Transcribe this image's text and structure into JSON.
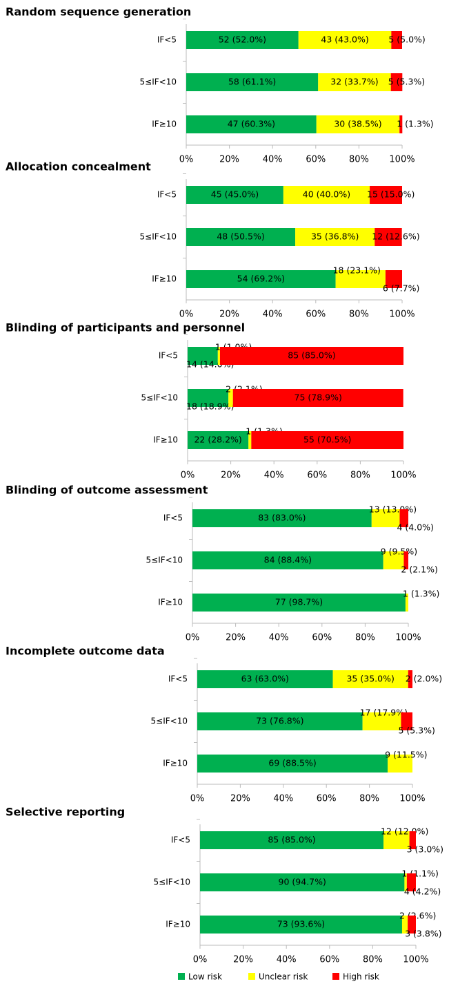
{
  "chart_data": [
    {
      "type": "stacked-bar",
      "title": "Random sequence generation",
      "categories": [
        "IF<5",
        "5≤IF<10",
        "IF≥10"
      ],
      "series": [
        {
          "color": "#00b050",
          "values": [
            52.0,
            61.1,
            60.3
          ],
          "value_labels": [
            "52 (52.0%)",
            "58 (61.1%)",
            "47 (60.3%)"
          ]
        },
        {
          "color": "#ffff00",
          "values": [
            43.0,
            33.7,
            38.5
          ],
          "value_labels": [
            "43 (43.0%)",
            "32 (33.7%)",
            "30 (38.5%)"
          ]
        },
        {
          "color": "#ff0000",
          "values": [
            5.0,
            5.3,
            1.3
          ],
          "value_labels": [
            "5 (5.0%)",
            "5 (5.3%)",
            "1 (1.3%)"
          ]
        }
      ],
      "xlim": [
        0,
        100
      ],
      "xticks": [
        {
          "value": 0,
          "label": "0%"
        },
        {
          "value": 20,
          "label": "20%"
        },
        {
          "value": 40,
          "label": "40%"
        },
        {
          "value": 60,
          "label": "60%"
        },
        {
          "value": 80,
          "label": "80%"
        },
        {
          "value": 100,
          "label": "100%"
        }
      ]
    },
    {
      "type": "stacked-bar",
      "title": "Allocation concealment",
      "categories": [
        "IF<5",
        "5≤IF<10",
        "IF≥10"
      ],
      "series": [
        {
          "color": "#00b050",
          "values": [
            45.0,
            50.5,
            69.2
          ],
          "value_labels": [
            "45 (45.0%)",
            "48 (50.5%)",
            "54 (69.2%)"
          ]
        },
        {
          "color": "#ffff00",
          "values": [
            40.0,
            36.8,
            23.1
          ],
          "value_labels": [
            "40 (40.0%)",
            "35 (36.8%)",
            "18 (23.1%)"
          ]
        },
        {
          "color": "#ff0000",
          "values": [
            15.0,
            12.6,
            7.7
          ],
          "value_labels": [
            "15 (15.0%)",
            "12 (12.6%)",
            "6 (7.7%)"
          ]
        }
      ],
      "xlim": [
        0,
        100
      ],
      "xticks": [
        {
          "value": 0,
          "label": "0%"
        },
        {
          "value": 20,
          "label": "20%"
        },
        {
          "value": 40,
          "label": "40%"
        },
        {
          "value": 60,
          "label": "60%"
        },
        {
          "value": 80,
          "label": "80%"
        },
        {
          "value": 100,
          "label": "100%"
        }
      ]
    },
    {
      "type": "stacked-bar",
      "title": "Blinding of participants and personnel",
      "categories": [
        "IF<5",
        "5≤IF<10",
        "IF≥10"
      ],
      "series": [
        {
          "color": "#00b050",
          "values": [
            14.0,
            18.9,
            28.2
          ],
          "value_labels": [
            "14 (14.0%)",
            "18 (18.9%)",
            "22 (28.2%)"
          ]
        },
        {
          "color": "#ffff00",
          "values": [
            1.0,
            2.1,
            1.3
          ],
          "value_labels": [
            "1 (1.0%)",
            "2 (2.1%)",
            "1 (1.3%)"
          ]
        },
        {
          "color": "#ff0000",
          "values": [
            85.0,
            78.9,
            70.5
          ],
          "value_labels": [
            "85 (85.0%)",
            "75 (78.9%)",
            "55 (70.5%)"
          ]
        }
      ],
      "xlim": [
        0,
        100
      ],
      "xticks": [
        {
          "value": 0,
          "label": "0%"
        },
        {
          "value": 20,
          "label": "20%"
        },
        {
          "value": 40,
          "label": "40%"
        },
        {
          "value": 60,
          "label": "60%"
        },
        {
          "value": 80,
          "label": "80%"
        },
        {
          "value": 100,
          "label": "100%"
        }
      ]
    },
    {
      "type": "stacked-bar",
      "title": "Blinding of outcome assessment",
      "categories": [
        "IF<5",
        "5≤IF<10",
        "IF≥10"
      ],
      "series": [
        {
          "color": "#00b050",
          "values": [
            83.0,
            88.4,
            98.7
          ],
          "value_labels": [
            "83 (83.0%)",
            "84 (88.4%)",
            "77 (98.7%)"
          ]
        },
        {
          "color": "#ffff00",
          "values": [
            13.0,
            9.5,
            1.3
          ],
          "value_labels": [
            "13 (13.0%)",
            "9 (9.5%)",
            "1 (1.3%)"
          ]
        },
        {
          "color": "#ff0000",
          "values": [
            4.0,
            2.1,
            null
          ],
          "value_labels": [
            "4 (4.0%)",
            "2 (2.1%)",
            null
          ]
        }
      ],
      "xlim": [
        0,
        100
      ],
      "xticks": [
        {
          "value": 0,
          "label": "0%"
        },
        {
          "value": 20,
          "label": "20%"
        },
        {
          "value": 40,
          "label": "40%"
        },
        {
          "value": 60,
          "label": "60%"
        },
        {
          "value": 80,
          "label": "80%"
        },
        {
          "value": 100,
          "label": "100%"
        }
      ]
    },
    {
      "type": "stacked-bar",
      "title": "Incomplete outcome data",
      "categories": [
        "IF<5",
        "5≤IF<10",
        "IF≥10"
      ],
      "series": [
        {
          "color": "#00b050",
          "values": [
            63.0,
            76.8,
            88.5
          ],
          "value_labels": [
            "63 (63.0%)",
            "73 (76.8%)",
            "69 (88.5%)"
          ]
        },
        {
          "color": "#ffff00",
          "values": [
            35.0,
            17.9,
            11.5
          ],
          "value_labels": [
            "35 (35.0%)",
            "17 (17.9%)",
            "9 (11.5%)"
          ]
        },
        {
          "color": "#ff0000",
          "values": [
            2.0,
            5.3,
            null
          ],
          "value_labels": [
            "2 (2.0%)",
            "5 (5.3%)",
            null
          ]
        }
      ],
      "xlim": [
        0,
        100
      ],
      "xticks": [
        {
          "value": 0,
          "label": "0%"
        },
        {
          "value": 20,
          "label": "20%"
        },
        {
          "value": 40,
          "label": "40%"
        },
        {
          "value": 60,
          "label": "60%"
        },
        {
          "value": 80,
          "label": "80%"
        },
        {
          "value": 100,
          "label": "100%"
        }
      ]
    },
    {
      "type": "stacked-bar",
      "title": "Selective reporting",
      "categories": [
        "IF<5",
        "5≤IF<10",
        "IF≥10"
      ],
      "series": [
        {
          "name": "Low risk",
          "color": "#00b050",
          "values": [
            85.0,
            94.7,
            93.6
          ],
          "value_labels": [
            "85 (85.0%)",
            "90 (94.7%)",
            "73 (93.6%)"
          ]
        },
        {
          "name": "Unclear risk",
          "color": "#ffff00",
          "values": [
            12.0,
            1.1,
            2.6
          ],
          "value_labels": [
            "12 (12.0%)",
            "1 (1.1%)",
            "2 (2.6%)"
          ]
        },
        {
          "name": "High risk",
          "color": "#ff0000",
          "values": [
            3.0,
            4.2,
            3.8
          ],
          "value_labels": [
            "3 (3.0%)",
            "4 (4.2%)",
            "3 (3.8%)"
          ]
        }
      ],
      "xlim": [
        0,
        100
      ],
      "xticks": [
        {
          "value": 0,
          "label": "0%"
        },
        {
          "value": 20,
          "label": "20%"
        },
        {
          "value": 40,
          "label": "40%"
        },
        {
          "value": 60,
          "label": "60%"
        },
        {
          "value": 80,
          "label": "80%"
        },
        {
          "value": 100,
          "label": "100%"
        }
      ]
    }
  ]
}
